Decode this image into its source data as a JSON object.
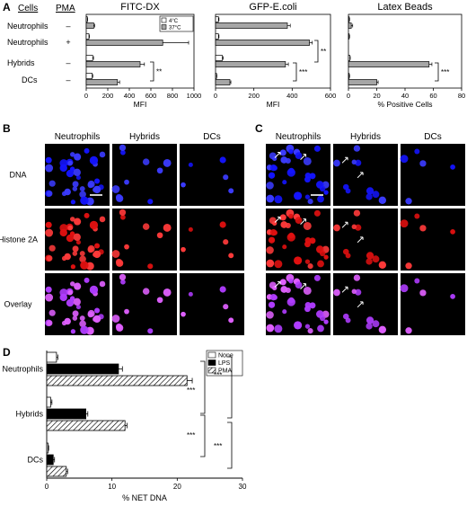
{
  "panel_letters": {
    "a": "A",
    "b": "B",
    "c": "C",
    "d": "D"
  },
  "panel_a": {
    "col_cells": "Cells",
    "col_pma": "PMA",
    "rows": [
      {
        "cell": "Neutrophils",
        "pma": "–"
      },
      {
        "cell": "Neutrophils",
        "pma": "+"
      },
      {
        "cell": "Hybrids",
        "pma": "–"
      },
      {
        "cell": "DCs",
        "pma": "–"
      }
    ]
  },
  "micro_b": {
    "cols": [
      "Neutrophils",
      "Hybrids",
      "DCs"
    ],
    "rows": [
      "DNA",
      "Histone 2A",
      "Overlay"
    ]
  },
  "micro_c": {
    "cols": [
      "Neutrophils",
      "Hybrids",
      "DCs"
    ]
  },
  "chart_data": [
    {
      "type": "bar",
      "orientation": "horizontal",
      "title": "FITC-DX",
      "xlabel": "MFI",
      "xlim": [
        0,
        1000
      ],
      "xticks": [
        "0",
        "200",
        "400",
        "600",
        "800",
        "1000"
      ],
      "categories": [
        "Neutrophils –",
        "Neutrophils +",
        "Hybrids –",
        "DCs –"
      ],
      "legend": [
        "4°C",
        "37°C"
      ],
      "legend_position": "top-right",
      "series": [
        {
          "name": "4°C",
          "values": [
            10,
            25,
            60,
            55
          ],
          "errors": [
            3,
            5,
            8,
            6
          ],
          "color": "#ffffff"
        },
        {
          "name": "37°C",
          "values": [
            70,
            710,
            500,
            290
          ],
          "errors": [
            8,
            240,
            40,
            20
          ],
          "color": "#a6a6a6"
        }
      ],
      "significance": [
        {
          "label": "**"
        }
      ]
    },
    {
      "type": "bar",
      "orientation": "horizontal",
      "title": "GFP-E.coli",
      "xlabel": "MFI",
      "xlim": [
        0,
        600
      ],
      "xticks": [
        "0",
        "200",
        "400",
        "600"
      ],
      "categories": [
        "Neutrophils –",
        "Neutrophils +",
        "Hybrids –",
        "DCs –"
      ],
      "series": [
        {
          "name": "4°C",
          "values": [
            15,
            15,
            35,
            5
          ],
          "errors": [
            3,
            3,
            5,
            2
          ],
          "color": "#ffffff"
        },
        {
          "name": "37°C",
          "values": [
            375,
            490,
            365,
            75
          ],
          "errors": [
            15,
            15,
            15,
            5
          ],
          "color": "#a6a6a6"
        }
      ],
      "significance": [
        {
          "label": "**"
        },
        {
          "label": "***"
        }
      ]
    },
    {
      "type": "bar",
      "orientation": "horizontal",
      "title": "Latex Beads",
      "xlabel": "% Positive Cells",
      "xlim": [
        0,
        80
      ],
      "xticks": [
        "0",
        "20",
        "40",
        "60",
        "80"
      ],
      "categories": [
        "Neutrophils –",
        "Neutrophils +",
        "Hybrids –",
        "DCs –"
      ],
      "series": [
        {
          "name": "4°C",
          "values": [
            0.5,
            0.5,
            1,
            0.5
          ],
          "errors": [
            0.3,
            0.3,
            0.3,
            0.3
          ],
          "color": "#ffffff"
        },
        {
          "name": "37°C",
          "values": [
            2,
            0,
            57,
            20
          ],
          "errors": [
            1,
            0,
            2,
            1
          ],
          "color": "#a6a6a6"
        }
      ],
      "significance": [
        {
          "label": "***"
        }
      ]
    },
    {
      "type": "bar",
      "orientation": "horizontal",
      "xlabel": "% NET DNA",
      "xlim": [
        0,
        30
      ],
      "xticks": [
        "0",
        "10",
        "20",
        "30"
      ],
      "categories": [
        "Neutrophils",
        "Hybrids",
        "DCs"
      ],
      "legend": [
        "None",
        "LPS",
        "PMA"
      ],
      "legend_position": "top-right",
      "series": [
        {
          "name": "None",
          "values": [
            1.5,
            0.6,
            0.2
          ],
          "errors": [
            0.2,
            0.2,
            0.1
          ],
          "color": "#ffffff"
        },
        {
          "name": "LPS",
          "values": [
            11,
            6,
            1
          ],
          "errors": [
            0.6,
            0.3,
            0.2
          ],
          "color": "#000000"
        },
        {
          "name": "PMA",
          "values": [
            21.5,
            12,
            3
          ],
          "errors": [
            0.8,
            0.3,
            0.2
          ],
          "color": "hatched"
        }
      ],
      "significance": [
        {
          "label": "***"
        },
        {
          "label": "***"
        },
        {
          "label": "***"
        },
        {
          "label": "***"
        }
      ]
    }
  ]
}
